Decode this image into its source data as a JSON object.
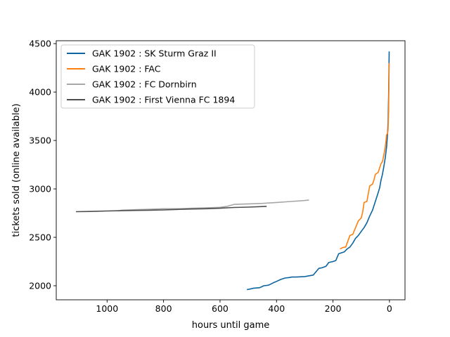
{
  "chart_data": {
    "type": "line",
    "title": "",
    "xlabel": "hours until game",
    "ylabel": "tickets sold (online available)",
    "xlim": [
      1180,
      -55
    ],
    "ylim": [
      1855,
      4530
    ],
    "x_inverted": true,
    "xticks": [
      1000,
      800,
      600,
      400,
      200,
      0
    ],
    "yticks": [
      2000,
      2500,
      3000,
      3500,
      4000,
      4500
    ],
    "grid": false,
    "legend_position": "top-left",
    "series": [
      {
        "name": "GAK 1902 : SK Sturm Graz II",
        "color": "#0b64a0",
        "x": [
          505,
          495,
          480,
          460,
          445,
          430,
          425,
          412,
          400,
          385,
          370,
          355,
          345,
          330,
          300,
          270,
          250,
          240,
          225,
          215,
          200,
          190,
          180,
          175,
          160,
          150,
          140,
          130,
          120,
          110,
          100,
          90,
          80,
          70,
          60,
          50,
          40,
          35,
          30,
          25,
          20,
          15,
          10,
          7,
          5,
          3,
          1
        ],
        "y": [
          1960,
          1965,
          1975,
          1980,
          2000,
          2005,
          2010,
          2030,
          2045,
          2065,
          2080,
          2085,
          2090,
          2090,
          2095,
          2110,
          2180,
          2185,
          2200,
          2240,
          2250,
          2260,
          2330,
          2335,
          2350,
          2380,
          2400,
          2440,
          2490,
          2520,
          2560,
          2600,
          2650,
          2720,
          2780,
          2870,
          2960,
          3010,
          3090,
          3150,
          3230,
          3320,
          3440,
          3560,
          3680,
          3960,
          4420
        ]
      },
      {
        "name": "GAK 1902 : FAC",
        "color": "#ff7f0e",
        "x": [
          175,
          165,
          155,
          150,
          145,
          140,
          130,
          120,
          110,
          100,
          95,
          90,
          80,
          70,
          60,
          55,
          50,
          40,
          30,
          25,
          20,
          15,
          10,
          7,
          5,
          3,
          1
        ],
        "y": [
          2380,
          2395,
          2400,
          2440,
          2480,
          2520,
          2530,
          2600,
          2670,
          2700,
          2760,
          2860,
          2870,
          3030,
          3050,
          3090,
          3150,
          3170,
          3260,
          3280,
          3350,
          3430,
          3560,
          3570,
          3610,
          3800,
          4300
        ]
      },
      {
        "name": "GAK 1902 : FC Dornbirn",
        "color": "#a6a6a6",
        "x": [
          960,
          950,
          900,
          850,
          800,
          750,
          700,
          650,
          600,
          575,
          550,
          500,
          450,
          400,
          350,
          300,
          285
        ],
        "y": [
          2770,
          2780,
          2785,
          2790,
          2795,
          2795,
          2800,
          2805,
          2810,
          2820,
          2840,
          2845,
          2850,
          2860,
          2870,
          2880,
          2885
        ]
      },
      {
        "name": "GAK 1902 : First Vienna FC 1894",
        "color": "#4d4d4d",
        "x": [
          1110,
          1050,
          1000,
          950,
          900,
          850,
          800,
          750,
          700,
          650,
          600,
          575,
          550,
          500,
          450,
          435
        ],
        "y": [
          2765,
          2768,
          2772,
          2775,
          2778,
          2780,
          2783,
          2788,
          2792,
          2795,
          2800,
          2805,
          2808,
          2812,
          2818,
          2820
        ]
      }
    ]
  }
}
